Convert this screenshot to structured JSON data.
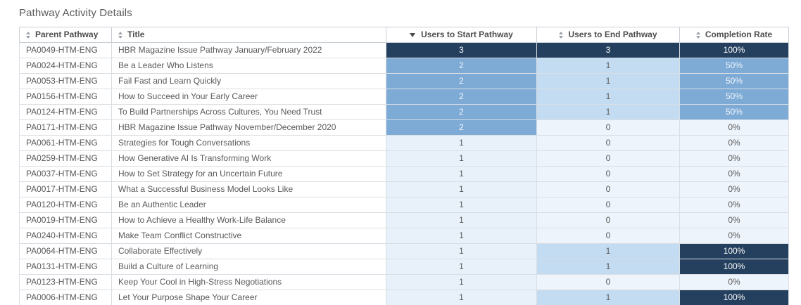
{
  "page": {
    "title": "Pathway Activity Details"
  },
  "palette": {
    "dark": {
      "bg": "#24405e",
      "text": "#ffffff"
    },
    "mid": {
      "bg": "#7dabd6",
      "text": "#f2f6fa"
    },
    "light": {
      "bg": "#c3dcf2",
      "text": "#595959"
    },
    "xlight": {
      "bg": "#e8f1fa",
      "text": "#595959"
    },
    "zero": {
      "bg": "#eef4fb",
      "text": "#595959"
    }
  },
  "table": {
    "columns": [
      {
        "id": "parent",
        "label": "Parent Pathway",
        "align": "left",
        "sort": "none"
      },
      {
        "id": "title",
        "label": "Title",
        "align": "left",
        "sort": "none"
      },
      {
        "id": "start",
        "label": "Users to Start Pathway",
        "align": "center",
        "sort": "desc"
      },
      {
        "id": "end",
        "label": "Users to End Pathway",
        "align": "center",
        "sort": "none"
      },
      {
        "id": "rate",
        "label": "Completion Rate",
        "align": "center",
        "sort": "none"
      }
    ],
    "rows": [
      {
        "parent": "PA0049-HTM-ENG",
        "title": "HBR Magazine Issue Pathway January/February 2022",
        "start": {
          "v": "3",
          "h": "dark"
        },
        "end": {
          "v": "3",
          "h": "dark"
        },
        "rate": {
          "v": "100%",
          "h": "dark"
        }
      },
      {
        "parent": "PA0024-HTM-ENG",
        "title": "Be a Leader Who Listens",
        "start": {
          "v": "2",
          "h": "mid"
        },
        "end": {
          "v": "1",
          "h": "light"
        },
        "rate": {
          "v": "50%",
          "h": "mid"
        }
      },
      {
        "parent": "PA0053-HTM-ENG",
        "title": "Fail Fast and Learn Quickly",
        "start": {
          "v": "2",
          "h": "mid"
        },
        "end": {
          "v": "1",
          "h": "light"
        },
        "rate": {
          "v": "50%",
          "h": "mid"
        }
      },
      {
        "parent": "PA0156-HTM-ENG",
        "title": "How to Succeed in Your Early Career",
        "start": {
          "v": "2",
          "h": "mid"
        },
        "end": {
          "v": "1",
          "h": "light"
        },
        "rate": {
          "v": "50%",
          "h": "mid"
        }
      },
      {
        "parent": "PA0124-HTM-ENG",
        "title": "To Build Partnerships Across Cultures, You Need Trust",
        "start": {
          "v": "2",
          "h": "mid"
        },
        "end": {
          "v": "1",
          "h": "light"
        },
        "rate": {
          "v": "50%",
          "h": "mid"
        }
      },
      {
        "parent": "PA0171-HTM-ENG",
        "title": "HBR Magazine Issue Pathway November/December 2020",
        "start": {
          "v": "2",
          "h": "mid"
        },
        "end": {
          "v": "0",
          "h": "zero"
        },
        "rate": {
          "v": "0%",
          "h": "zero"
        }
      },
      {
        "parent": "PA0061-HTM-ENG",
        "title": "Strategies for Tough Conversations",
        "start": {
          "v": "1",
          "h": "xlight"
        },
        "end": {
          "v": "0",
          "h": "zero"
        },
        "rate": {
          "v": "0%",
          "h": "zero"
        }
      },
      {
        "parent": "PA0259-HTM-ENG",
        "title": "How Generative AI Is Transforming Work",
        "start": {
          "v": "1",
          "h": "xlight"
        },
        "end": {
          "v": "0",
          "h": "zero"
        },
        "rate": {
          "v": "0%",
          "h": "zero"
        }
      },
      {
        "parent": "PA0037-HTM-ENG",
        "title": "How to Set Strategy for an Uncertain Future",
        "start": {
          "v": "1",
          "h": "xlight"
        },
        "end": {
          "v": "0",
          "h": "zero"
        },
        "rate": {
          "v": "0%",
          "h": "zero"
        }
      },
      {
        "parent": "PA0017-HTM-ENG",
        "title": "What a Successful Business Model Looks Like",
        "start": {
          "v": "1",
          "h": "xlight"
        },
        "end": {
          "v": "0",
          "h": "zero"
        },
        "rate": {
          "v": "0%",
          "h": "zero"
        }
      },
      {
        "parent": "PA0120-HTM-ENG",
        "title": "Be an Authentic Leader",
        "start": {
          "v": "1",
          "h": "xlight"
        },
        "end": {
          "v": "0",
          "h": "zero"
        },
        "rate": {
          "v": "0%",
          "h": "zero"
        }
      },
      {
        "parent": "PA0019-HTM-ENG",
        "title": "How to Achieve a Healthy Work-Life Balance",
        "start": {
          "v": "1",
          "h": "xlight"
        },
        "end": {
          "v": "0",
          "h": "zero"
        },
        "rate": {
          "v": "0%",
          "h": "zero"
        }
      },
      {
        "parent": "PA0240-HTM-ENG",
        "title": "Make Team Conflict Constructive",
        "start": {
          "v": "1",
          "h": "xlight"
        },
        "end": {
          "v": "0",
          "h": "zero"
        },
        "rate": {
          "v": "0%",
          "h": "zero"
        }
      },
      {
        "parent": "PA0064-HTM-ENG",
        "title": "Collaborate Effectively",
        "start": {
          "v": "1",
          "h": "xlight"
        },
        "end": {
          "v": "1",
          "h": "light"
        },
        "rate": {
          "v": "100%",
          "h": "dark"
        }
      },
      {
        "parent": "PA0131-HTM-ENG",
        "title": "Build a Culture of Learning",
        "start": {
          "v": "1",
          "h": "xlight"
        },
        "end": {
          "v": "1",
          "h": "light"
        },
        "rate": {
          "v": "100%",
          "h": "dark"
        }
      },
      {
        "parent": "PA0123-HTM-ENG",
        "title": "Keep Your Cool in High-Stress Negotiations",
        "start": {
          "v": "1",
          "h": "xlight"
        },
        "end": {
          "v": "0",
          "h": "zero"
        },
        "rate": {
          "v": "0%",
          "h": "zero"
        }
      },
      {
        "parent": "PA0006-HTM-ENG",
        "title": "Let Your Purpose Shape Your Career",
        "start": {
          "v": "1",
          "h": "xlight"
        },
        "end": {
          "v": "1",
          "h": "light"
        },
        "rate": {
          "v": "100%",
          "h": "dark"
        }
      }
    ]
  }
}
